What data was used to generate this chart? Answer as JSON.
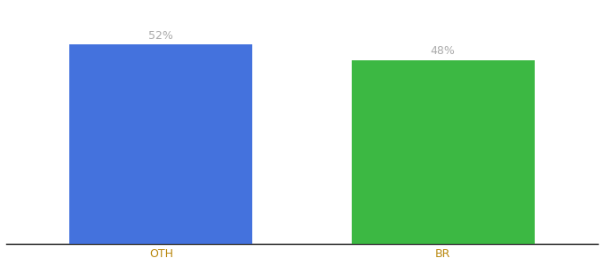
{
  "categories": [
    "OTH",
    "BR"
  ],
  "values": [
    52,
    48
  ],
  "bar_colors": [
    "#4472DD",
    "#3CB843"
  ],
  "label_texts": [
    "52%",
    "48%"
  ],
  "ylim": [
    0,
    62
  ],
  "bar_width": 0.65,
  "label_fontsize": 9,
  "tick_fontsize": 9,
  "background_color": "#ffffff",
  "label_color": "#aaaaaa",
  "tick_color": "#b8860b"
}
